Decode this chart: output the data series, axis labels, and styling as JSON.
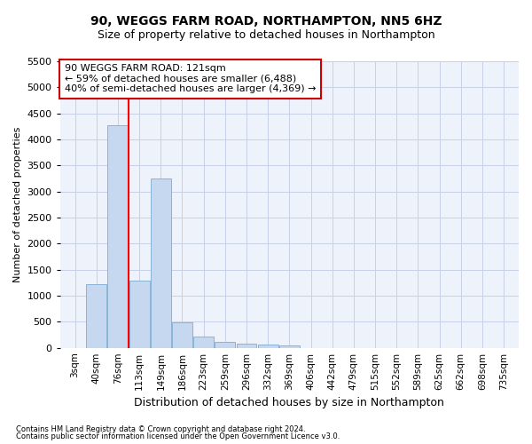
{
  "title": "90, WEGGS FARM ROAD, NORTHAMPTON, NN5 6HZ",
  "subtitle": "Size of property relative to detached houses in Northampton",
  "xlabel": "Distribution of detached houses by size in Northampton",
  "ylabel": "Number of detached properties",
  "categories": [
    "3sqm",
    "40sqm",
    "76sqm",
    "113sqm",
    "149sqm",
    "186sqm",
    "223sqm",
    "259sqm",
    "296sqm",
    "332sqm",
    "369sqm",
    "406sqm",
    "442sqm",
    "479sqm",
    "515sqm",
    "552sqm",
    "589sqm",
    "625sqm",
    "662sqm",
    "698sqm",
    "735sqm"
  ],
  "values": [
    0,
    1230,
    4270,
    1290,
    3250,
    490,
    210,
    110,
    80,
    60,
    50,
    0,
    0,
    0,
    0,
    0,
    0,
    0,
    0,
    0,
    0
  ],
  "bar_color": "#c5d8f0",
  "bar_edge_color": "#7aadd4",
  "red_line_x": 2.5,
  "annotation_text": "90 WEGGS FARM ROAD: 121sqm\n← 59% of detached houses are smaller (6,488)\n40% of semi-detached houses are larger (4,369) →",
  "annotation_box_color": "#ffffff",
  "annotation_box_edge_color": "#cc0000",
  "ylim": [
    0,
    5500
  ],
  "yticks": [
    0,
    500,
    1000,
    1500,
    2000,
    2500,
    3000,
    3500,
    4000,
    4500,
    5000,
    5500
  ],
  "footer_line1": "Contains HM Land Registry data © Crown copyright and database right 2024.",
  "footer_line2": "Contains public sector information licensed under the Open Government Licence v3.0.",
  "bg_color": "#ffffff",
  "plot_bg_color": "#eef2fb",
  "grid_color": "#c8d0e8",
  "title_fontsize": 10,
  "subtitle_fontsize": 9,
  "annotation_fontsize": 8
}
